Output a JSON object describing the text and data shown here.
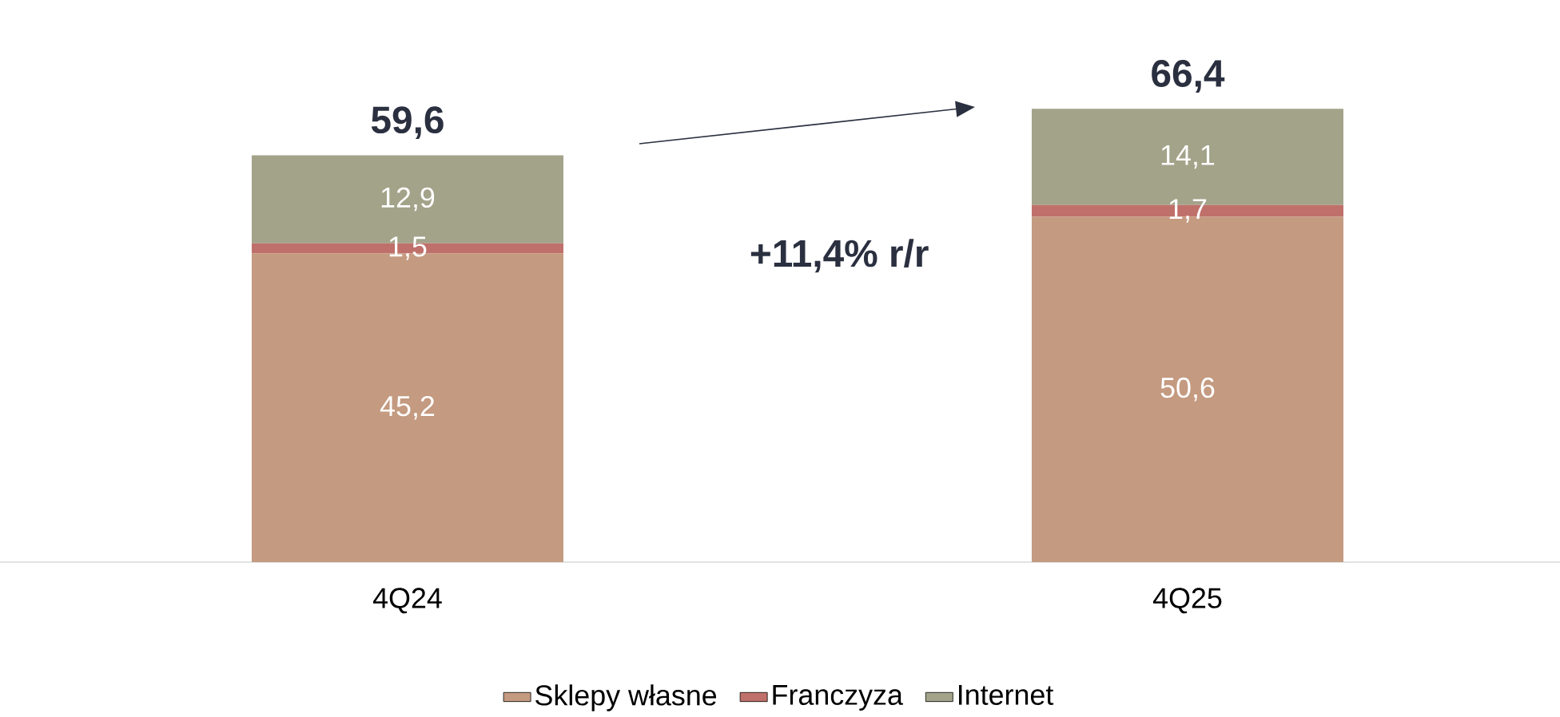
{
  "chart_data": {
    "type": "bar",
    "stacked": true,
    "categories": [
      "4Q24",
      "4Q25"
    ],
    "series": [
      {
        "name": "Sklepy własne",
        "color": "#c49a80",
        "values": [
          45.2,
          50.6
        ],
        "value_labels": [
          "45,2",
          "50,6"
        ]
      },
      {
        "name": "Franczyza",
        "color": "#c0706a",
        "values": [
          1.5,
          1.7
        ],
        "value_labels": [
          "1,5",
          "1,7"
        ]
      },
      {
        "name": "Internet",
        "color": "#a3a38a",
        "values": [
          12.9,
          14.1
        ],
        "value_labels": [
          "12,9",
          "14,1"
        ]
      }
    ],
    "totals": [
      "59,6",
      "66,4"
    ],
    "annotations": [
      "+11,4% r/r"
    ],
    "legend": "bottom"
  }
}
